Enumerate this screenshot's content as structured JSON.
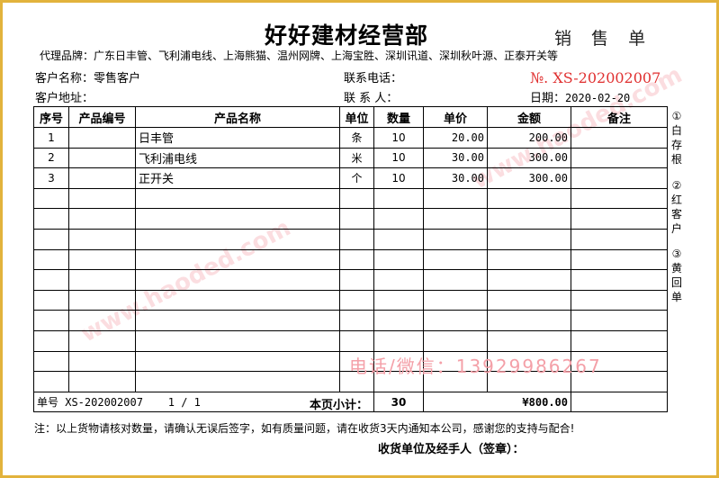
{
  "colors": {
    "frame": "#e2b33c",
    "number": "#e03030",
    "watermark": "#f4a0a8"
  },
  "header": {
    "title": "好好建材经营部",
    "doc_type": "销 售 单",
    "brands": "代理品牌：广东日丰管、飞利浦电线、上海熊猫、温州网牌、上海宝胜、深圳讯道、深圳秋叶源、正泰开关等",
    "customer_name_label": "客户名称：",
    "customer_name": "零售客户",
    "address_label": "客户地址：",
    "phone_label": "联系电话：",
    "contact_label": "联 系 人：",
    "number": "№. XS-202002007",
    "date_label": "日期：",
    "date": "2020-02-20"
  },
  "table": {
    "columns": [
      "序号",
      "产品编号",
      "产品名称",
      "单位",
      "数量",
      "单价",
      "金额",
      "备注"
    ],
    "rows": [
      [
        "1",
        "",
        "日丰管",
        "条",
        "10",
        "20.00",
        "200.00",
        ""
      ],
      [
        "2",
        "",
        "飞利浦电线",
        "米",
        "10",
        "30.00",
        "300.00",
        ""
      ],
      [
        "3",
        "",
        "正开关",
        "个",
        "10",
        "30.00",
        "300.00",
        ""
      ],
      [
        "",
        "",
        "",
        "",
        "",
        "",
        "",
        ""
      ],
      [
        "",
        "",
        "",
        "",
        "",
        "",
        "",
        ""
      ],
      [
        "",
        "",
        "",
        "",
        "",
        "",
        "",
        ""
      ],
      [
        "",
        "",
        "",
        "",
        "",
        "",
        "",
        ""
      ],
      [
        "",
        "",
        "",
        "",
        "",
        "",
        "",
        ""
      ],
      [
        "",
        "",
        "",
        "",
        "",
        "",
        "",
        ""
      ],
      [
        "",
        "",
        "",
        "",
        "",
        "",
        "",
        ""
      ],
      [
        "",
        "",
        "",
        "",
        "",
        "",
        "",
        ""
      ],
      [
        "",
        "",
        "",
        "",
        "",
        "",
        "",
        ""
      ],
      [
        "",
        "",
        "",
        "",
        "",
        "",
        "",
        ""
      ]
    ],
    "summary": {
      "order_label": "单号 XS-202002007",
      "page": "1 / 1",
      "subtotal_label": "本页小计：",
      "qty_total": "30",
      "amount_total": "¥800.00"
    }
  },
  "side_labels": [
    "①白存根",
    "②红客户",
    "③黄回单"
  ],
  "footer": {
    "note": "注：以上货物请核对数量，请确认无误后签字，如有质量问题，请在收货3天内通知本公司，感谢您的支持与配合!",
    "signature": "收货单位及经手人（签章）："
  },
  "watermarks": {
    "contact": "电话/微信：13929986267",
    "site": "www.haoded.com"
  }
}
